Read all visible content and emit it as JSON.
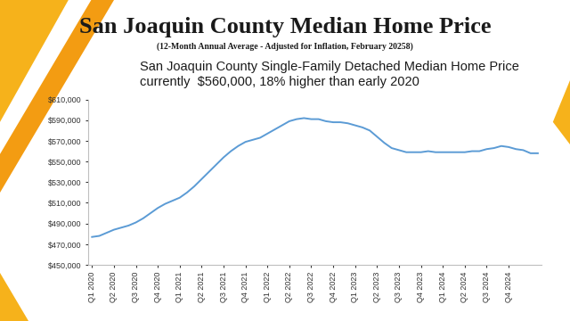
{
  "chart_data": {
    "type": "line",
    "title": "San Joaquin County Median Home Price",
    "subtitle": "(12-Month Annual Average - Adjusted for Inflation, February 20258)",
    "annotation": "San Joaquin County Single-Family Detached Median Home Price currently  $560,000, 18% higher than early 2020",
    "categories": [
      "Q1 2020",
      null,
      null,
      "Q2 2020",
      null,
      null,
      "Q3 2020",
      null,
      null,
      "Q4 2020",
      null,
      null,
      "Q1 2021",
      null,
      null,
      "Q2 2021",
      null,
      null,
      "Q3 2021",
      null,
      null,
      "Q4 2021",
      null,
      null,
      "Q1 2022",
      null,
      null,
      "Q2 2022",
      null,
      null,
      "Q3 2022",
      null,
      null,
      "Q4 2022",
      null,
      null,
      "Q1 2023",
      null,
      null,
      "Q2 2023",
      null,
      null,
      "Q3 2023",
      null,
      null,
      "Q4 2023",
      null,
      null,
      "Q1 2024",
      null,
      null,
      "Q2 2024",
      null,
      null,
      "Q3 2024",
      null,
      null,
      "Q4 2024",
      null,
      null,
      null,
      null
    ],
    "values": [
      477000,
      478000,
      481000,
      484000,
      486000,
      488000,
      491000,
      495000,
      500000,
      505000,
      509000,
      512000,
      515000,
      520000,
      526000,
      533000,
      540000,
      547000,
      554000,
      560000,
      565000,
      569000,
      571000,
      573000,
      577000,
      581000,
      585000,
      589000,
      591000,
      592000,
      591000,
      591000,
      589000,
      588000,
      588000,
      587000,
      585000,
      583000,
      580000,
      574000,
      568000,
      563000,
      561000,
      559000,
      559000,
      559000,
      560000,
      559000,
      559000,
      559000,
      559000,
      559000,
      560000,
      560000,
      562000,
      563000,
      565000,
      564000,
      562000,
      561000,
      558000,
      558000
    ],
    "color": "#5b9bd5",
    "ylim": [
      450000,
      610000
    ],
    "yticks": [
      {
        "value": 450000,
        "label": "$450,000"
      },
      {
        "value": 470000,
        "label": "$470,000"
      },
      {
        "value": 490000,
        "label": "$490,000"
      },
      {
        "value": 510000,
        "label": "$510,000"
      },
      {
        "value": 530000,
        "label": "$530,000"
      },
      {
        "value": 550000,
        "label": "$550,000"
      },
      {
        "value": 570000,
        "label": "$570,000"
      },
      {
        "value": 590000,
        "label": "$590,000"
      },
      {
        "value": 610000,
        "label": "$610,000"
      }
    ],
    "grid": false
  }
}
